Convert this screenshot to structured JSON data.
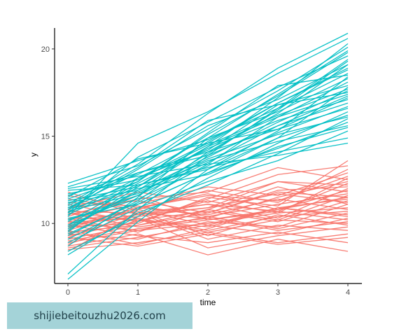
{
  "chart_data": {
    "type": "line",
    "title": "",
    "xlabel": "time",
    "ylabel": "y",
    "x": [
      0,
      1,
      2,
      3,
      4
    ],
    "xlim": [
      -0.2,
      4.2
    ],
    "ylim": [
      6.6,
      21.6
    ],
    "xticks": [
      "0",
      "1",
      "2",
      "3",
      "4"
    ],
    "yticks": [
      "10",
      "15",
      "20"
    ],
    "ytick_values": [
      10,
      15,
      20
    ],
    "grid": false,
    "legend": "none",
    "groups": [
      {
        "color": "#F8766D",
        "series": [
          [
            8.4,
            10.6,
            11.1,
            10.7,
            12.3
          ],
          [
            9.1,
            9.9,
            10.8,
            10.2,
            11.6
          ],
          [
            9.8,
            10.9,
            11.6,
            11.3,
            12.7
          ],
          [
            10.3,
            10.2,
            9.8,
            10.9,
            10.4
          ],
          [
            9.4,
            9.1,
            10.1,
            9.8,
            11.1
          ],
          [
            10.9,
            11.3,
            10.6,
            11.9,
            12.1
          ],
          [
            8.9,
            9.6,
            10.4,
            9.7,
            10.6
          ],
          [
            10.1,
            10.7,
            9.3,
            10.5,
            9.9
          ],
          [
            9.6,
            8.8,
            9.7,
            10.9,
            11.4
          ],
          [
            11.4,
            10.8,
            11.9,
            11.2,
            13.1
          ],
          [
            9.9,
            10.4,
            10.9,
            12.4,
            11.8
          ],
          [
            8.7,
            9.4,
            8.2,
            9.1,
            8.4
          ],
          [
            10.6,
            9.8,
            10.3,
            9.6,
            10.1
          ],
          [
            9.3,
            10.1,
            11.3,
            10.6,
            12.6
          ],
          [
            11.8,
            10.5,
            10.9,
            11.7,
            11.2
          ],
          [
            10.4,
            11.6,
            10.2,
            10.8,
            11.9
          ],
          [
            8.6,
            9.2,
            9.9,
            9.4,
            10.3
          ],
          [
            9.7,
            10.9,
            10.5,
            11.4,
            10.8
          ],
          [
            10.8,
            10.1,
            11.4,
            12.8,
            13.3
          ],
          [
            9.2,
            8.7,
            9.4,
            8.8,
            9.2
          ],
          [
            10.2,
            11.1,
            12.1,
            11.6,
            12.9
          ],
          [
            11.1,
            10.3,
            9.6,
            10.4,
            10.7
          ],
          [
            9.5,
            9.9,
            10.6,
            11.8,
            11.5
          ],
          [
            10.7,
            10.6,
            9.1,
            9.9,
            9.6
          ],
          [
            8.8,
            10.2,
            10.7,
            10.1,
            11.3
          ],
          [
            9.9,
            9.3,
            8.9,
            9.5,
            8.9
          ],
          [
            10.5,
            11.4,
            11.8,
            13.2,
            12.5
          ],
          [
            9.0,
            9.7,
            10.2,
            10.7,
            10.2
          ],
          [
            11.2,
            11.0,
            10.4,
            11.1,
            11.7
          ],
          [
            10.0,
            10.5,
            11.1,
            10.3,
            12.0
          ],
          [
            9.6,
            10.8,
            9.9,
            10.9,
            10.5
          ],
          [
            10.3,
            9.5,
            10.8,
            12.1,
            11.1
          ],
          [
            8.5,
            8.9,
            9.5,
            8.9,
            9.4
          ],
          [
            9.8,
            10.0,
            11.5,
            11.0,
            13.6
          ],
          [
            10.9,
            11.8,
            11.2,
            12.4,
            12.2
          ],
          [
            9.4,
            10.3,
            8.6,
            9.3,
            9.8
          ],
          [
            10.1,
            9.6,
            10.0,
            10.6,
            10.9
          ],
          [
            11.6,
            10.9,
            11.7,
            10.8,
            11.5
          ],
          [
            9.2,
            10.6,
            10.3,
            11.5,
            12.4
          ],
          [
            10.6,
            10.2,
            9.5,
            10.2,
            10.0
          ]
        ]
      },
      {
        "color": "#00BFC4",
        "series": [
          [
            7.1,
            10.8,
            13.9,
            16.6,
            19.4
          ],
          [
            9.6,
            12.1,
            14.4,
            16.1,
            18.1
          ],
          [
            10.9,
            12.4,
            15.1,
            17.3,
            19.8
          ],
          [
            11.6,
            12.9,
            14.1,
            15.4,
            17.2
          ],
          [
            10.2,
            11.4,
            13.3,
            15.2,
            16.7
          ],
          [
            12.1,
            13.3,
            15.4,
            17.6,
            20.1
          ],
          [
            9.1,
            11.1,
            12.9,
            14.3,
            15.8
          ],
          [
            10.6,
            12.6,
            14.6,
            16.9,
            18.8
          ],
          [
            11.2,
            11.9,
            13.8,
            15.8,
            17.6
          ],
          [
            8.4,
            10.4,
            12.6,
            14.6,
            16.4
          ],
          [
            10.8,
            13.1,
            15.6,
            17.1,
            19.1
          ],
          [
            11.9,
            12.2,
            13.2,
            14.1,
            14.9
          ],
          [
            9.9,
            11.6,
            13.5,
            15.6,
            17.3
          ],
          [
            10.4,
            14.6,
            16.4,
            18.6,
            20.6
          ],
          [
            11.4,
            12.8,
            14.9,
            16.4,
            18.3
          ],
          [
            9.3,
            11.3,
            14.1,
            16.3,
            19.1
          ],
          [
            10.1,
            12.3,
            14.3,
            15.9,
            17.1
          ],
          [
            12.3,
            13.6,
            14.8,
            16.6,
            18.6
          ],
          [
            8.9,
            10.9,
            12.4,
            13.6,
            15.3
          ],
          [
            10.7,
            11.7,
            13.7,
            15.1,
            16.1
          ],
          [
            11.1,
            13.4,
            16.3,
            18.9,
            20.9
          ],
          [
            9.5,
            12.6,
            14.2,
            16.8,
            17.9
          ],
          [
            10.3,
            11.1,
            12.9,
            14.9,
            16.2
          ],
          [
            11.7,
            12.5,
            14.5,
            16.2,
            17.7
          ],
          [
            6.8,
            10.1,
            13.1,
            15.3,
            18.4
          ],
          [
            10.6,
            13.8,
            15.8,
            17.8,
            19.6
          ],
          [
            9.8,
            11.8,
            13.6,
            14.7,
            15.6
          ],
          [
            11.3,
            12.1,
            14.7,
            16.9,
            18.9
          ],
          [
            10.9,
            12.9,
            13.9,
            15.6,
            16.9
          ],
          [
            8.7,
            11.5,
            14.9,
            17.4,
            19.9
          ],
          [
            12.0,
            12.7,
            13.4,
            13.9,
            14.6
          ],
          [
            9.4,
            11.2,
            13.4,
            16.1,
            17.4
          ],
          [
            10.5,
            12.4,
            15.2,
            17.9,
            18.5
          ],
          [
            11.5,
            13.7,
            14.6,
            15.4,
            16.6
          ],
          [
            9.9,
            12.2,
            13.1,
            14.9,
            17.8
          ],
          [
            10.2,
            11.6,
            14.0,
            16.5,
            19.3
          ],
          [
            8.2,
            10.6,
            12.2,
            14.0,
            16.0
          ],
          [
            11.0,
            13.2,
            15.9,
            16.8,
            17.5
          ],
          [
            10.8,
            12.0,
            12.8,
            14.4,
            15.5
          ],
          [
            9.7,
            11.9,
            14.4,
            17.2,
            20.3
          ]
        ]
      }
    ]
  },
  "watermark": {
    "text": "shijiebeitouzhu2026.com"
  }
}
